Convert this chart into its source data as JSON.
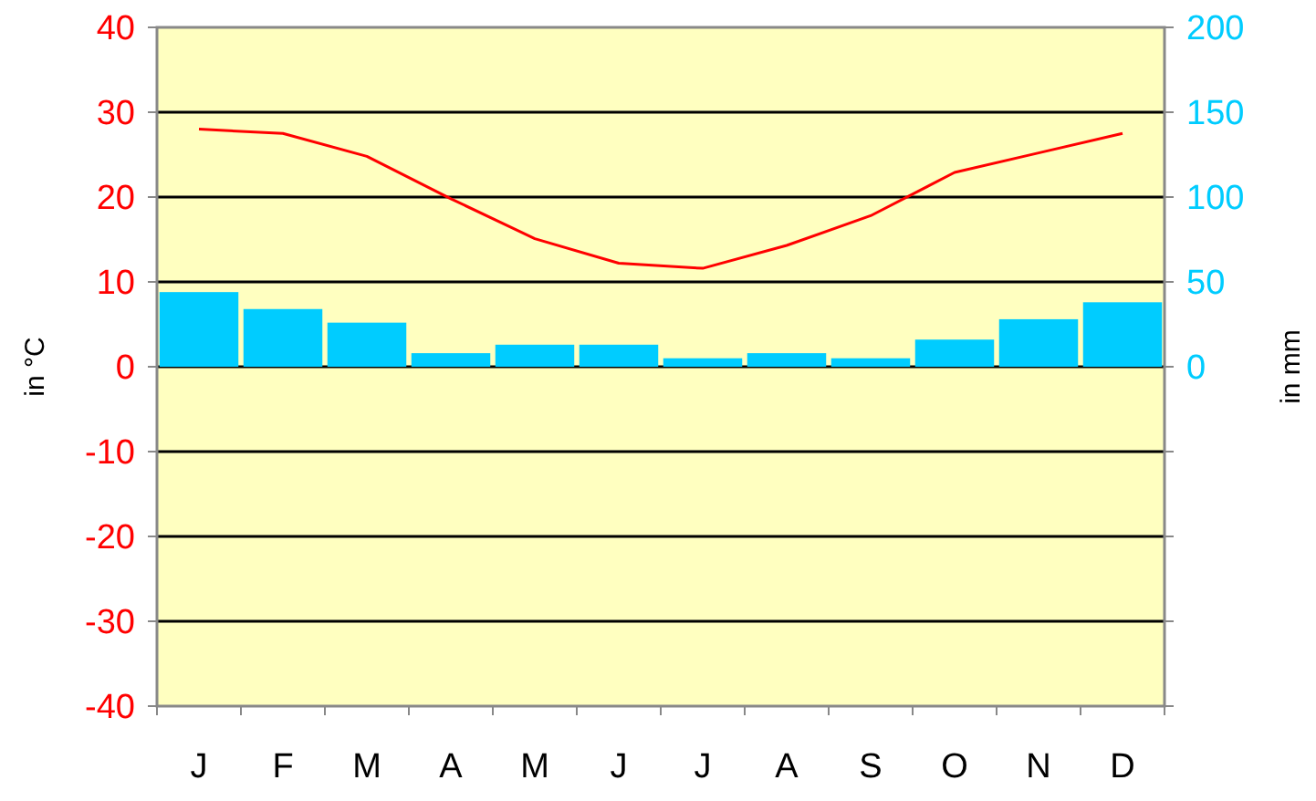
{
  "chart_data": {
    "type": "bar",
    "categories": [
      "J",
      "F",
      "M",
      "A",
      "M",
      "J",
      "J",
      "A",
      "S",
      "O",
      "N",
      "D"
    ],
    "series": [
      {
        "axis": "y2",
        "color": "#00ccff",
        "values": [
          44,
          34,
          26,
          8,
          13,
          13,
          5,
          8,
          5,
          16,
          28,
          38
        ]
      },
      {
        "type": "line",
        "axis": "y",
        "color": "#ff0000",
        "values": [
          28,
          27.5,
          24.8,
          19.8,
          15.1,
          12.2,
          11.6,
          14.3,
          17.8,
          22.9,
          25.2,
          27.5
        ]
      }
    ],
    "ylabel": "in °C",
    "y2label": "in mm",
    "ylim": [
      -40,
      40
    ],
    "yticks": [
      -40,
      -30,
      -20,
      -10,
      0,
      10,
      20,
      30,
      40
    ],
    "y2lim": [
      -200,
      200
    ],
    "y2ticks": [
      {
        "value": -200,
        "label": null
      },
      {
        "value": -150,
        "label": null
      },
      {
        "value": -100,
        "label": null
      },
      {
        "value": -50,
        "label": null
      },
      0,
      50,
      100,
      150,
      200
    ],
    "grid": "y",
    "marker": "none",
    "line_style": "solid"
  }
}
